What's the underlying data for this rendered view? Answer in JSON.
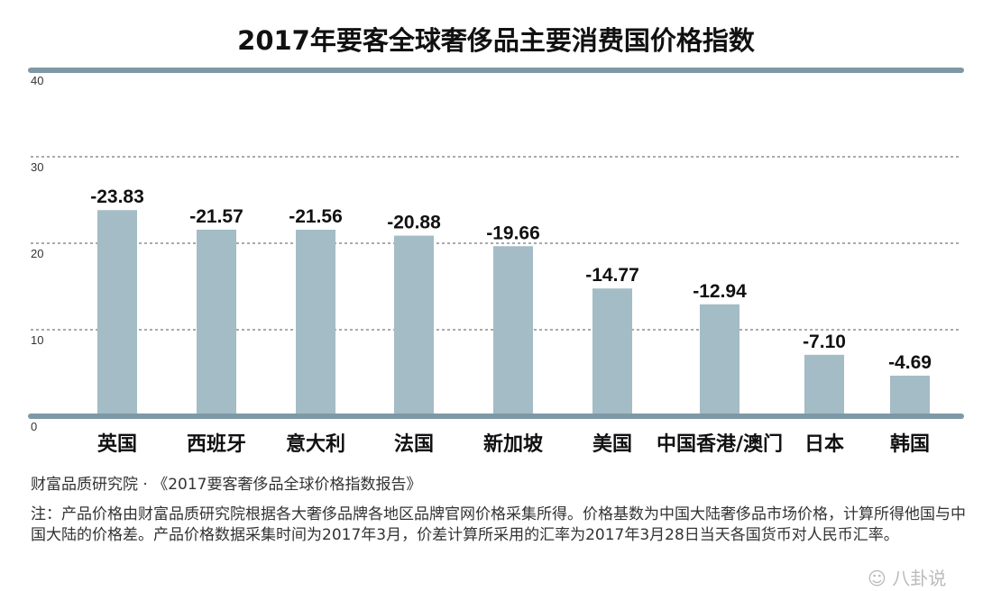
{
  "chart_data": {
    "type": "bar",
    "title": "2017年要客全球奢侈品主要消费国价格指数",
    "categories": [
      "英国",
      "西班牙",
      "意大利",
      "法国",
      "新加坡",
      "美国",
      "中国香港/澳门",
      "日本",
      "韩国"
    ],
    "values": [
      -23.83,
      -21.57,
      -21.56,
      -20.88,
      -19.66,
      -14.77,
      -12.94,
      -7.1,
      -4.69
    ],
    "data_labels": [
      "-23.83",
      "-21.57",
      "-21.56",
      "-20.88",
      "-19.66",
      "-14.77",
      "-12.94",
      "-7.10",
      "-4.69"
    ],
    "bar_magnitude_plotted": "absolute value",
    "yticks": [
      "0",
      "10",
      "20",
      "30",
      "40"
    ],
    "ylim": [
      0,
      40
    ],
    "xlabel": "",
    "ylabel": "",
    "grid": "horizontal dashed",
    "colors": {
      "bar": "#a3bcc5",
      "axis": "#7e99a5",
      "grid": "#555555"
    }
  },
  "footer": {
    "source": "财富品质研究院 · 《2017要客奢侈品全球价格指数报告》",
    "note": "注：产品价格由财富品质研究院根据各大奢侈品牌各地区品牌官网价格采集所得。价格基数为中国大陆奢侈品市场价格，计算所得他国与中国大陆的价格差。产品价格数据采集时间为2017年3月，价差计算所采用的汇率为2017年3月28日当天各国货币对人民币汇率。"
  },
  "watermark": "八卦说"
}
